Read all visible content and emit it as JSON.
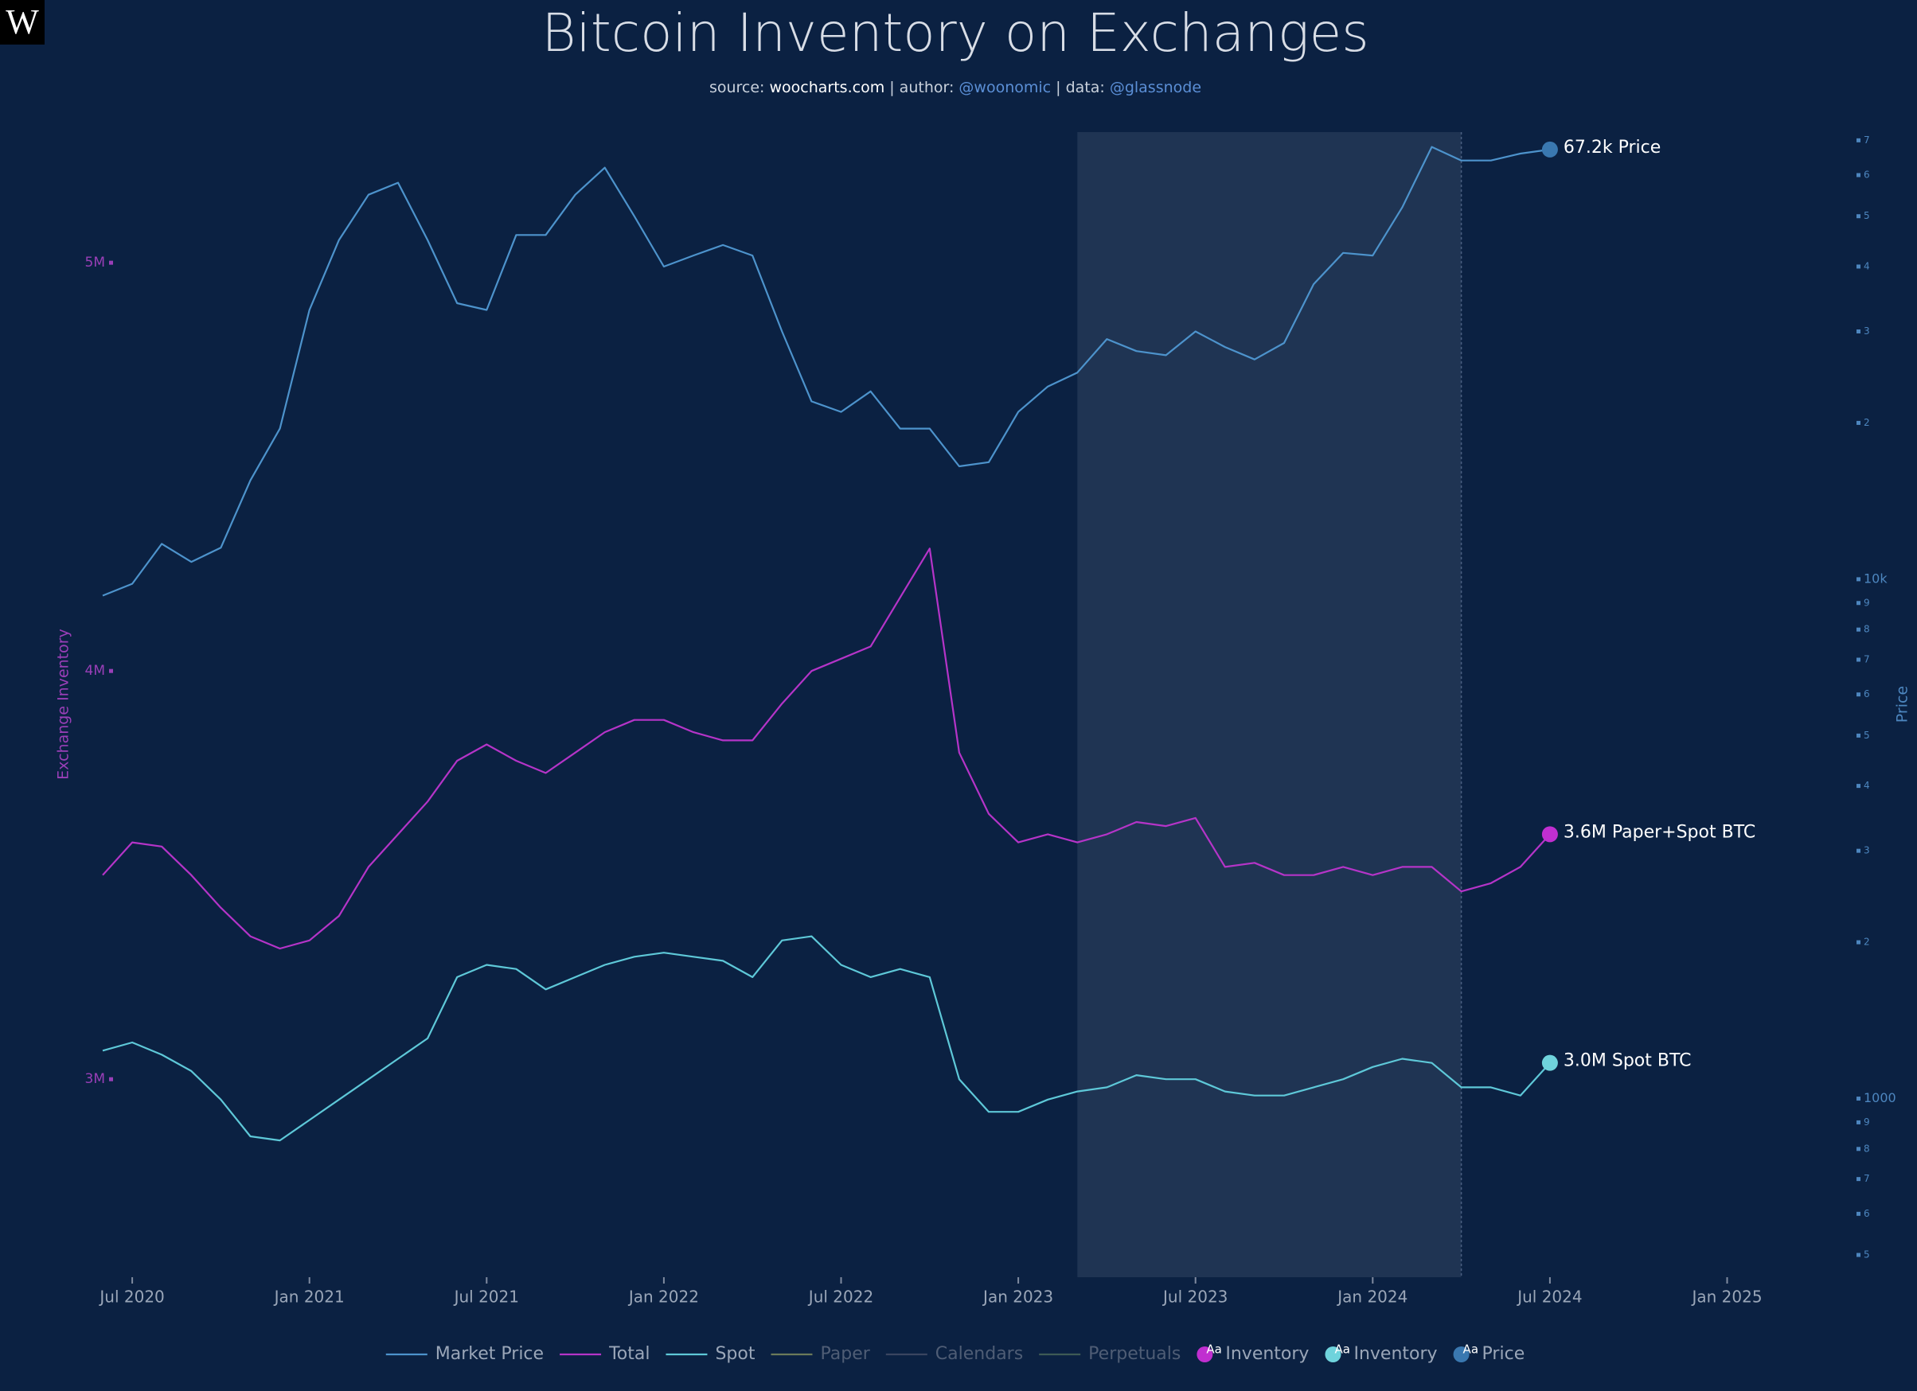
{
  "chart_data": {
    "type": "line",
    "logo": "W",
    "title": "Bitcoin Inventory on Exchanges",
    "subtitle_parts": [
      {
        "text": "source: ",
        "color": "#c9d1dc"
      },
      {
        "text": "woocharts.com",
        "color": "#ffffff"
      },
      {
        "text": " | author: ",
        "color": "#c9d1dc"
      },
      {
        "text": "@woonomic",
        "color": "#5b8fd6"
      },
      {
        "text": " | data: ",
        "color": "#c9d1dc"
      },
      {
        "text": "@glassnode",
        "color": "#5b8fd6"
      }
    ],
    "y_label": "Exchange Inventory",
    "y2_label": "Price",
    "y2_log": true,
    "x": [
      "2020-06",
      "2020-07",
      "2020-08",
      "2020-09",
      "2020-10",
      "2020-11",
      "2020-12",
      "2021-01",
      "2021-02",
      "2021-03",
      "2021-04",
      "2021-05",
      "2021-06",
      "2021-07",
      "2021-08",
      "2021-09",
      "2021-10",
      "2021-11",
      "2021-12",
      "2022-01",
      "2022-02",
      "2022-03",
      "2022-04",
      "2022-05",
      "2022-06",
      "2022-07",
      "2022-08",
      "2022-09",
      "2022-10",
      "2022-11",
      "2022-12",
      "2023-01",
      "2023-02",
      "2023-03",
      "2023-04",
      "2023-05",
      "2023-06",
      "2023-07",
      "2023-08",
      "2023-09",
      "2023-10",
      "2023-11",
      "2023-12",
      "2024-01",
      "2024-02",
      "2024-03",
      "2024-04",
      "2024-05",
      "2024-06",
      "2024-07"
    ],
    "xlim": [
      "2020-06",
      "2025-06"
    ],
    "xticks": [
      {
        "value": "2020-07",
        "label": "Jul 2020"
      },
      {
        "value": "2021-01",
        "label": "Jan 2021"
      },
      {
        "value": "2021-07",
        "label": "Jul 2021"
      },
      {
        "value": "2022-01",
        "label": "Jan 2022"
      },
      {
        "value": "2022-07",
        "label": "Jul 2022"
      },
      {
        "value": "2023-01",
        "label": "Jan 2023"
      },
      {
        "value": "2023-07",
        "label": "Jul 2023"
      },
      {
        "value": "2024-01",
        "label": "Jan 2024"
      },
      {
        "value": "2024-07",
        "label": "Jul 2024"
      },
      {
        "value": "2025-01",
        "label": "Jan 2025"
      }
    ],
    "ylim": [
      2515000,
      5320000
    ],
    "yticks": [
      {
        "value": 3000000,
        "label": "3M"
      },
      {
        "value": 4000000,
        "label": "4M"
      },
      {
        "value": 5000000,
        "label": "5M"
      }
    ],
    "y2lim": [
      453,
      72600
    ],
    "y2ticks": [
      {
        "value": 500,
        "label": "5"
      },
      {
        "value": 600,
        "label": "6"
      },
      {
        "value": 700,
        "label": "7"
      },
      {
        "value": 800,
        "label": "8"
      },
      {
        "value": 900,
        "label": "9"
      },
      1000,
      {
        "value": 2000,
        "label": "2"
      },
      {
        "value": 3000,
        "label": "3"
      },
      {
        "value": 4000,
        "label": "4"
      },
      {
        "value": 5000,
        "label": "5"
      },
      {
        "value": 6000,
        "label": "6"
      },
      {
        "value": 7000,
        "label": "7"
      },
      {
        "value": 8000,
        "label": "8"
      },
      {
        "value": 9000,
        "label": "9"
      },
      {
        "value": 10000,
        "label": "10k"
      },
      {
        "value": 20000,
        "label": "2"
      },
      {
        "value": 30000,
        "label": "3"
      },
      {
        "value": 40000,
        "label": "4"
      },
      {
        "value": 50000,
        "label": "5"
      },
      {
        "value": 60000,
        "label": "6"
      },
      {
        "value": 70000,
        "label": "7"
      }
    ],
    "shaded_range": [
      "2023-03",
      "2024-04"
    ],
    "series": [
      {
        "name": "Market Price",
        "color": "#4d93cc",
        "axis": "y2",
        "end_label": "67.2k Price",
        "end_color": "#3a78b0",
        "values": [
          9300,
          9800,
          11700,
          10800,
          11500,
          15500,
          19500,
          33000,
          45000,
          55000,
          58000,
          45000,
          34000,
          33000,
          46000,
          46000,
          55000,
          62000,
          50000,
          40000,
          42000,
          44000,
          42000,
          30000,
          22000,
          21000,
          23000,
          19500,
          19500,
          16500,
          16800,
          21000,
          23500,
          25000,
          29000,
          27500,
          27000,
          30000,
          28000,
          26500,
          28500,
          37000,
          42500,
          42000,
          52000,
          68000,
          64000,
          64000,
          66000,
          67200
        ]
      },
      {
        "name": "Total",
        "color": "#b534c8",
        "end_label": "3.6M Paper+Spot BTC",
        "end_color": "#c02fd0",
        "values": [
          3500000,
          3580000,
          3570000,
          3500000,
          3420000,
          3350000,
          3320000,
          3340000,
          3400000,
          3520000,
          3600000,
          3680000,
          3780000,
          3820000,
          3780000,
          3750000,
          3800000,
          3850000,
          3880000,
          3880000,
          3850000,
          3830000,
          3830000,
          3920000,
          4000000,
          4030000,
          4060000,
          4180000,
          4300000,
          3800000,
          3650000,
          3580000,
          3600000,
          3580000,
          3600000,
          3630000,
          3620000,
          3640000,
          3520000,
          3530000,
          3500000,
          3500000,
          3520000,
          3500000,
          3520000,
          3520000,
          3460000,
          3480000,
          3520000,
          3600000
        ]
      },
      {
        "name": "Spot",
        "color": "#5ec8d8",
        "end_label": "3.0M Spot BTC",
        "end_color": "#6fd3dc",
        "values": [
          3070000,
          3090000,
          3060000,
          3020000,
          2950000,
          2860000,
          2850000,
          2900000,
          2950000,
          3000000,
          3050000,
          3100000,
          3250000,
          3280000,
          3270000,
          3220000,
          3250000,
          3280000,
          3300000,
          3310000,
          3300000,
          3290000,
          3250000,
          3340000,
          3350000,
          3280000,
          3250000,
          3270000,
          3250000,
          3000000,
          2920000,
          2920000,
          2950000,
          2970000,
          2980000,
          3010000,
          3000000,
          3000000,
          2970000,
          2960000,
          2960000,
          2980000,
          3000000,
          3030000,
          3050000,
          3040000,
          2980000,
          2980000,
          2960000,
          3040000
        ]
      }
    ],
    "legend_hidden": [
      {
        "name": "Paper",
        "color": "#6b7a5a"
      },
      {
        "name": "Calendars",
        "color": "#3a4560"
      },
      {
        "name": "Perpetuals",
        "color": "#3e5a55"
      }
    ],
    "marker_text": "Aa",
    "label_legend": [
      {
        "name": "Inventory",
        "color": "#c02fd0"
      },
      {
        "name": "Inventory",
        "color": "#6fd3dc"
      },
      {
        "name": "Price",
        "color": "#3a78b0"
      }
    ]
  }
}
